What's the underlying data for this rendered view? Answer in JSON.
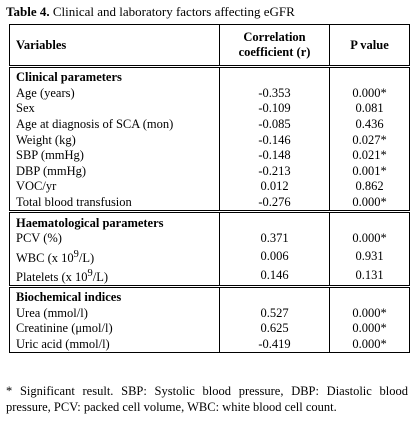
{
  "caption": {
    "label": "Table 4.",
    "text": "Clinical and laboratory factors affecting eGFR"
  },
  "table": {
    "headers": {
      "variables": "Variables",
      "correlation_line1": "Correlation",
      "correlation_line2": "coefficient (r)",
      "pvalue": "P value"
    },
    "sections": [
      {
        "title": "Clinical parameters",
        "rows": [
          {
            "variable": "Age (years)",
            "r": "-0.353",
            "p": "0.000*"
          },
          {
            "variable": "Sex",
            "r": "-0.109",
            "p": "0.081"
          },
          {
            "variable": "Age at diagnosis of SCA (mon)",
            "r": "-0.085",
            "p": "0.436"
          },
          {
            "variable": "Weight (kg)",
            "r": "-0.146",
            "p": "0.027*"
          },
          {
            "variable": "SBP (mmHg)",
            "r": "-0.148",
            "p": "0.021*"
          },
          {
            "variable": "DBP (mmHg)",
            "r": "-0.213",
            "p": "0.001*"
          },
          {
            "variable": "VOC/yr",
            "r": "0.012",
            "p": "0.862"
          },
          {
            "variable": "Total blood transfusion",
            "r": "-0.276",
            "p": "0.000*"
          }
        ]
      },
      {
        "title": "Haematological parameters",
        "rows": [
          {
            "variable": "PCV (%)",
            "r": "0.371",
            "p": "0.000*"
          },
          {
            "variable_pre": "WBC (x 10",
            "variable_sup": "9",
            "variable_post": "/L)",
            "r": "0.006",
            "p": "0.931"
          },
          {
            "variable_pre": "Platelets (x 10",
            "variable_sup": "9",
            "variable_post": "/L)",
            "r": "0.146",
            "p": "0.131"
          }
        ]
      },
      {
        "title": "Biochemical indices",
        "rows": [
          {
            "variable": "Urea (mmol/l)",
            "r": "0.527",
            "p": "0.000*"
          },
          {
            "variable": "Creatinine (μmol/l)",
            "r": "0.625",
            "p": "0.000*"
          },
          {
            "variable": "Uric acid (mmol/l)",
            "r": "-0.419",
            "p": "0.000*"
          }
        ]
      }
    ]
  },
  "footnote": "* Significant result. SBP: Systolic blood pressure, DBP: Diastolic blood pressure, PCV: packed cell volume, WBC: white blood cell count."
}
